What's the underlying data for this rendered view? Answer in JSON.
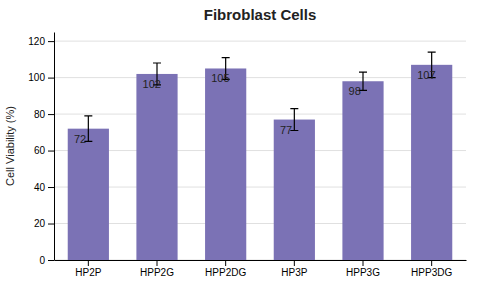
{
  "chart_data": {
    "type": "bar",
    "title": "Fibroblast Cells",
    "categories": [
      "HP2P",
      "HPP2G",
      "HPP2DG",
      "HP3P",
      "HPP3G",
      "HPP3DG"
    ],
    "values": [
      72,
      102,
      105,
      77,
      98,
      107
    ],
    "errors": [
      7,
      6,
      6,
      6,
      5,
      7
    ],
    "color": "#7b72b5",
    "ylabel": "Cell Viability (%)",
    "ylim": [
      0,
      125
    ],
    "yticks": [
      0,
      20,
      40,
      60,
      80,
      100,
      120
    ],
    "grid": true,
    "data_labels": true
  }
}
